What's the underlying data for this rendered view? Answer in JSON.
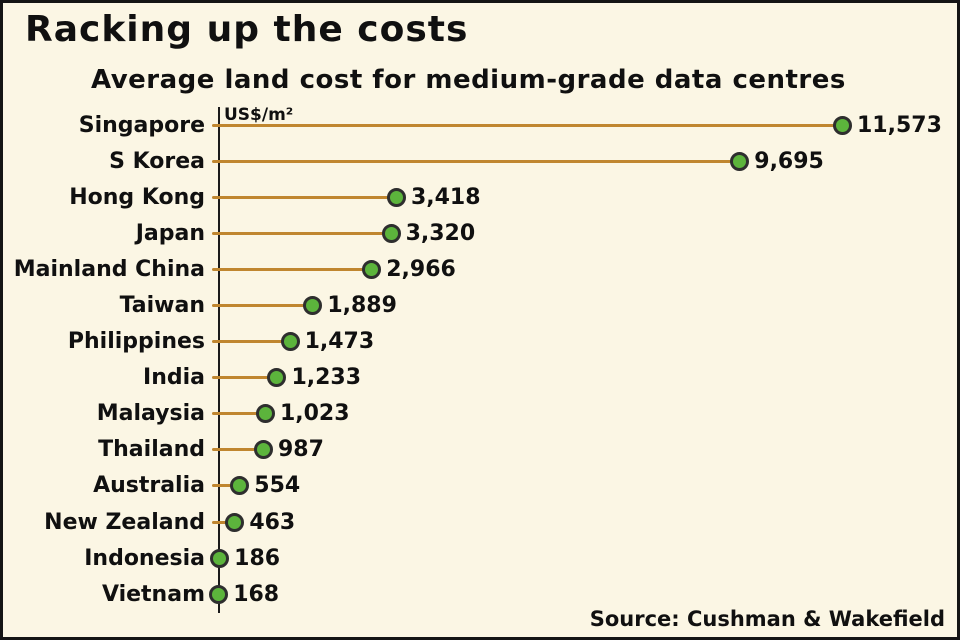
{
  "title": "Racking up the costs",
  "subtitle": "Average land cost for medium-grade data centres",
  "axis_unit": "US$/m²",
  "source": "Source: Cushman & Wakefield",
  "colors": {
    "background": "#fbf6e4",
    "stem": "#c0862f",
    "dot_fill": "#5cb43c",
    "dot_stroke": "#2e2e2e",
    "text": "#101010"
  },
  "chart_data": {
    "type": "bar",
    "style": "lollipop",
    "title": "Racking up the costs",
    "subtitle": "Average land cost for medium-grade data centres",
    "xlabel": "US$/m²",
    "ylabel": "",
    "xlim": [
      0,
      11573
    ],
    "grid": false,
    "legend": false,
    "categories": [
      "Singapore",
      "S Korea",
      "Hong Kong",
      "Japan",
      "Mainland China",
      "Taiwan",
      "Philippines",
      "India",
      "Malaysia",
      "Thailand",
      "Australia",
      "New Zealand",
      "Indonesia",
      "Vietnam"
    ],
    "values": [
      11573,
      9695,
      3418,
      3320,
      2966,
      1889,
      1473,
      1233,
      1023,
      987,
      554,
      463,
      186,
      168
    ],
    "value_labels": [
      "11,573",
      "9,695",
      "3,418",
      "3,320",
      "2,966",
      "1,889",
      "1,473",
      "1,233",
      "1,023",
      "987",
      "554",
      "463",
      "186",
      "168"
    ],
    "source": "Source: Cushman & Wakefield"
  }
}
